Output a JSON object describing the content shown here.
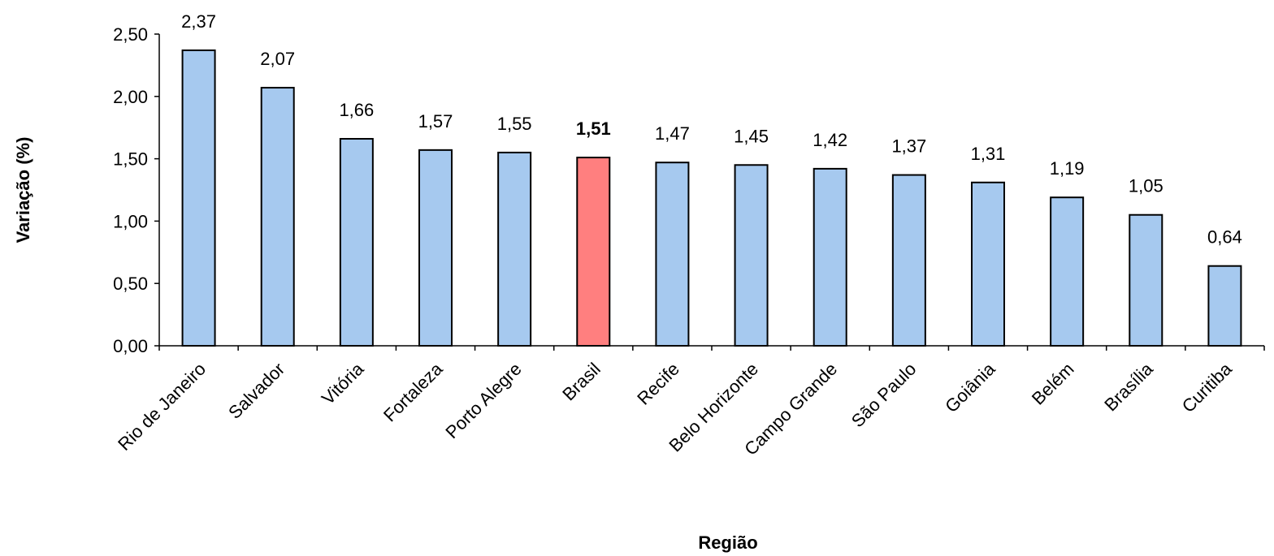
{
  "chart_data": {
    "type": "bar",
    "categories": [
      "Rio de Janeiro",
      "Salvador",
      "Vitória",
      "Fortaleza",
      "Porto Alegre",
      "Brasil",
      "Recife",
      "Belo Horizonte",
      "Campo Grande",
      "São Paulo",
      "Goiânia",
      "Belém",
      "Brasília",
      "Curitiba"
    ],
    "values": [
      2.37,
      2.07,
      1.66,
      1.57,
      1.55,
      1.51,
      1.47,
      1.45,
      1.42,
      1.37,
      1.31,
      1.19,
      1.05,
      0.64
    ],
    "data_labels": [
      "2,37",
      "2,07",
      "1,66",
      "1,57",
      "1,55",
      "1,51",
      "1,47",
      "1,45",
      "1,42",
      "1,37",
      "1,31",
      "1,19",
      "1,05",
      "0,64"
    ],
    "highlight_category": "Brasil",
    "bar_color": "#a6c9ef",
    "highlight_color": "#ff7f7f",
    "xlabel": "Região",
    "ylabel": "Variação (%)",
    "ylim": [
      0,
      2.5
    ],
    "yticks": [
      0,
      0.5,
      1.0,
      1.5,
      2.0,
      2.5
    ],
    "ytick_labels": [
      "0,00",
      "0,50",
      "1,00",
      "1,50",
      "2,00",
      "2,50"
    ],
    "grid": false,
    "legend": false
  }
}
